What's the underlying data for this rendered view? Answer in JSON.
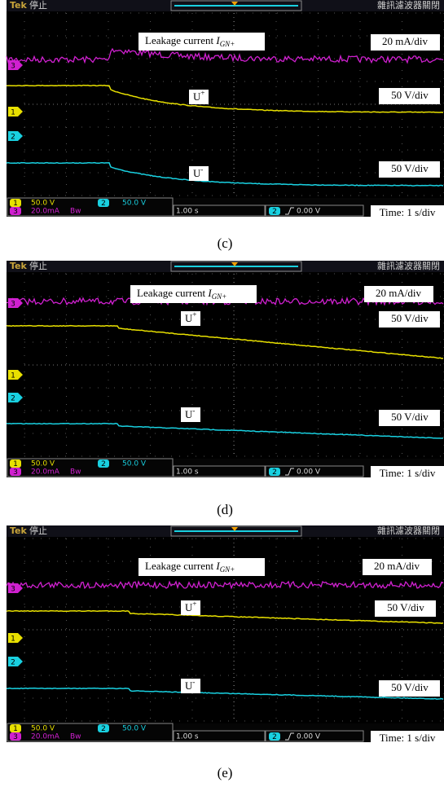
{
  "panels": [
    {
      "header": {
        "brand": "Tek",
        "status": "停止",
        "filter": "雜訊濾波器關閉"
      },
      "annotations": {
        "leakage": {
          "text": "Leakage current ",
          "symbol": "I",
          "subscript": "GN+"
        },
        "leakage_scale": "20 mA/div",
        "u_plus": {
          "text": "U",
          "sup": "+"
        },
        "u_plus_scale": "50 V/div",
        "u_minus": {
          "text": "U",
          "sup": "-"
        },
        "u_minus_scale": "50 V/div",
        "time": "Time: 1 s/div"
      },
      "markers": [
        "3",
        "1",
        "2"
      ],
      "footer": {
        "ch1": {
          "num": "1",
          "scale": "50.0 V"
        },
        "ch2": {
          "num": "2",
          "scale": "50.0 V"
        },
        "ch3": {
          "num": "3",
          "scale": "20.0mA",
          "bw": "Bw"
        },
        "timebase": "1.00 s",
        "trigger": {
          "source": "2",
          "level": "0.00 V"
        }
      },
      "caption": "(c)"
    },
    {
      "header": {
        "brand": "Tek",
        "status": "停止",
        "filter": "雜訊濾波器關閉"
      },
      "annotations": {
        "leakage": {
          "text": "Leakage current ",
          "symbol": "I",
          "subscript": "GN+"
        },
        "leakage_scale": "20 mA/div",
        "u_plus": {
          "text": "U",
          "sup": "+"
        },
        "u_plus_scale": "50 V/div",
        "u_minus": {
          "text": "U",
          "sup": "-"
        },
        "u_minus_scale": "50 V/div",
        "time": "Time: 1 s/div"
      },
      "markers": [
        "3",
        "1",
        "2"
      ],
      "footer": {
        "ch1": {
          "num": "1",
          "scale": "50.0 V"
        },
        "ch2": {
          "num": "2",
          "scale": "50.0 V"
        },
        "ch3": {
          "num": "3",
          "scale": "20.0mA",
          "bw": "Bw"
        },
        "timebase": "1.00 s",
        "trigger": {
          "source": "2",
          "level": "0.00 V"
        }
      },
      "caption": "(d)"
    },
    {
      "header": {
        "brand": "Tek",
        "status": "停止",
        "filter": "雜訊濾波器關閉"
      },
      "annotations": {
        "leakage": {
          "text": "Leakage current ",
          "symbol": "I",
          "subscript": "GN+"
        },
        "leakage_scale": "20 mA/div",
        "u_plus": {
          "text": "U",
          "sup": "+"
        },
        "u_plus_scale": "50 V/div",
        "u_minus": {
          "text": "U",
          "sup": "-"
        },
        "u_minus_scale": "50 V/div",
        "time": "Time: 1 s/div"
      },
      "markers": [
        "3",
        "1",
        "2"
      ],
      "footer": {
        "ch1": {
          "num": "1",
          "scale": "50.0 V"
        },
        "ch2": {
          "num": "2",
          "scale": "50.0 V"
        },
        "ch3": {
          "num": "3",
          "scale": "20.0mA",
          "bw": "Bw"
        },
        "timebase": "1.00 s",
        "trigger": {
          "source": "2",
          "level": "0.00 V"
        }
      },
      "caption": "(e)"
    }
  ]
}
